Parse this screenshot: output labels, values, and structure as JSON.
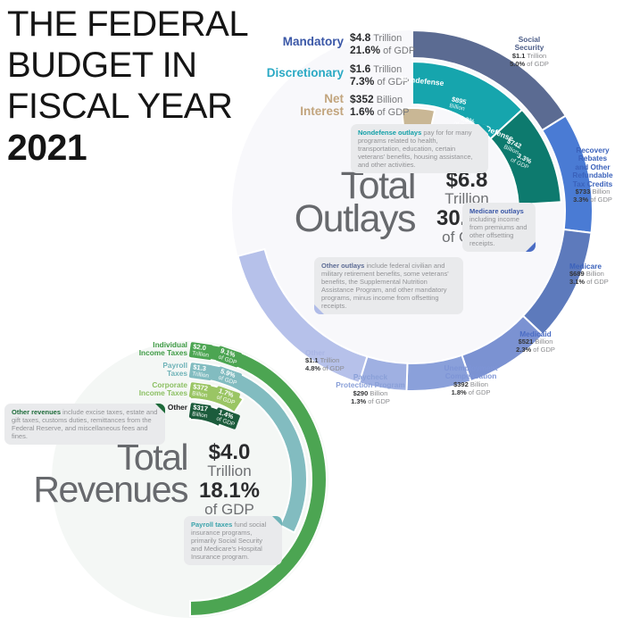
{
  "header": {
    "title_lines": [
      "THE FEDERAL",
      "BUDGET IN",
      "FISCAL YEAR"
    ],
    "year": "2021"
  },
  "chart_data": [
    {
      "id": "outlays",
      "type": "donut-nested",
      "title": "Total Outlays",
      "center_label": {
        "word1": "Total",
        "word2": "Outlays",
        "amount": "$6.8",
        "unit": "Trillion",
        "pct": "30.5%",
        "suffix": "of GDP"
      },
      "total_billions": 6800,
      "rings": [
        {
          "name": "Mandatory",
          "amount": "$4.8",
          "unit": "Trillion",
          "pct": "21.6%",
          "suffix": "of GDP",
          "label_color": "#3a57a7",
          "segments": [
            {
              "name": "Social Security",
              "lines": [
                "Social",
                "Security"
              ],
              "value_billions": 1100,
              "amount": "$1.1",
              "unit": "Trillion",
              "pct": "5.0%",
              "suffix": "of GDP",
              "color": "#5b6b92"
            },
            {
              "name": "Recovery Rebates and Other Refundable Tax Credits",
              "lines": [
                "Recovery",
                "Rebates",
                "and Other",
                "Refundable",
                "Tax Credits"
              ],
              "value_billions": 733,
              "amount": "$733",
              "unit": "Billion",
              "pct": "3.3%",
              "suffix": "of GDP",
              "color": "#4a7bd4"
            },
            {
              "name": "Medicare",
              "lines": [
                "Medicare"
              ],
              "value_billions": 689,
              "amount": "$689",
              "unit": "Billion",
              "pct": "3.1%",
              "suffix": "of GDP",
              "color": "#5d7abc"
            },
            {
              "name": "Medicaid",
              "lines": [
                "Medicaid"
              ],
              "value_billions": 521,
              "amount": "$521",
              "unit": "Billion",
              "pct": "2.3%",
              "suffix": "of GDP",
              "color": "#7b92d2"
            },
            {
              "name": "Unemployment Compensation",
              "lines": [
                "Unemployment",
                "Compensation"
              ],
              "value_billions": 392,
              "amount": "$392",
              "unit": "Billion",
              "pct": "1.8%",
              "suffix": "of GDP",
              "color": "#8aa0da"
            },
            {
              "name": "Paycheck Protection Program",
              "lines": [
                "Paycheck",
                "Protection Program"
              ],
              "value_billions": 290,
              "amount": "$290",
              "unit": "Billion",
              "pct": "1.3%",
              "suffix": "of GDP",
              "color": "#9fb0e2"
            },
            {
              "name": "Other",
              "lines": [
                "Other"
              ],
              "value_billions": 1100,
              "amount": "$1.1",
              "unit": "Trillion",
              "pct": "4.8%",
              "suffix": "of GDP",
              "color": "#b6c1ea"
            }
          ]
        },
        {
          "name": "Discretionary",
          "amount": "$1.6",
          "unit": "Trillion",
          "pct": "7.3%",
          "suffix": "of GDP",
          "label_color": "#2aa9c4",
          "segments": [
            {
              "name": "Nondefense",
              "lines": [
                "Nondefense"
              ],
              "value_billions": 895,
              "amount": "$895",
              "unit": "Billion",
              "pct": "4.0%",
              "suffix": "of GDP",
              "color": "#16a5ad"
            },
            {
              "name": "Defense",
              "lines": [
                "Defense"
              ],
              "value_billions": 742,
              "amount": "$742",
              "unit": "Billion",
              "pct": "3.3%",
              "suffix": "of GDP",
              "color": "#0d7a6e"
            }
          ]
        },
        {
          "name": "Net Interest",
          "amount": "$352",
          "unit": "Billion",
          "pct": "1.6%",
          "suffix": "of GDP",
          "label_color": "#c2a57e",
          "segments": [
            {
              "name": "Net Interest",
              "lines": [
                "Net",
                "Interest"
              ],
              "value_billions": 352,
              "amount": "$352",
              "unit": "Billion",
              "pct": "1.6%",
              "suffix": "of GDP",
              "color": "#c9b795"
            }
          ]
        }
      ]
    },
    {
      "id": "revenues",
      "type": "donut-nested",
      "title": "Total Revenues",
      "center_label": {
        "word1": "Total",
        "word2": "Revenues",
        "amount": "$4.0",
        "unit": "Trillion",
        "pct": "18.1%",
        "suffix": "of GDP"
      },
      "total_billions": 4000,
      "rings": [
        {
          "name": "Individual Income Taxes",
          "segments": [
            {
              "name": "Individual Income Taxes",
              "lines": [
                "Individual",
                "Income Taxes"
              ],
              "value_billions": 2000,
              "amount": "$2.0",
              "unit": "Trillion",
              "pct": "9.1%",
              "suffix": "of GDP",
              "color": "#4ca552"
            }
          ]
        },
        {
          "name": "Payroll Taxes",
          "segments": [
            {
              "name": "Payroll Taxes",
              "lines": [
                "Payroll",
                "Taxes"
              ],
              "value_billions": 1300,
              "amount": "$1.3",
              "unit": "Trillion",
              "pct": "5.9%",
              "suffix": "of GDP",
              "color": "#82bcc0"
            }
          ]
        },
        {
          "name": "Corporate Income Taxes",
          "segments": [
            {
              "name": "Corporate Income Taxes",
              "lines": [
                "Corporate",
                "Income Taxes"
              ],
              "value_billions": 372,
              "amount": "$372",
              "unit": "Billion",
              "pct": "1.7%",
              "suffix": "of GDP",
              "color": "#9ac564"
            }
          ]
        },
        {
          "name": "Other",
          "segments": [
            {
              "name": "Other",
              "lines": [
                "Other"
              ],
              "value_billions": 317,
              "amount": "$317",
              "unit": "Billion",
              "pct": "1.4%",
              "suffix": "of GDP",
              "color": "#1c5c3c"
            }
          ]
        }
      ]
    }
  ],
  "tooltips": {
    "nondefense": {
      "lead": "Nondefense outlays",
      "lead_color": "#12a0a8",
      "text": "pay for for many programs related to health, transportation, education, certain veterans' benefits, housing assistance, and other activities."
    },
    "medicare": {
      "lead": "Medicare outlays",
      "lead_color": "#3a57a7",
      "text": "including income from premiums and other offsetting receipts."
    },
    "other_outlays": {
      "lead": "Other outlays",
      "lead_color": "#5c6b94",
      "text": "include federal civilian and military retirement benefits, some veterans' benefits, the Supplemental Nutrition Assistance Program, and other mandatory programs, minus income from offsetting receipts."
    },
    "other_revenues": {
      "lead": "Other revenues",
      "lead_color": "#1e6b3a",
      "text": "include excise taxes, estate and gift taxes, customs duties, remittances from the Federal Reserve, and miscellaneous fees and fines."
    },
    "payroll": {
      "lead": "Payroll taxes",
      "lead_color": "#3aa3ab",
      "text": "fund social insurance programs, primarily Social Security and Medicare's Hospital Insurance program."
    }
  }
}
